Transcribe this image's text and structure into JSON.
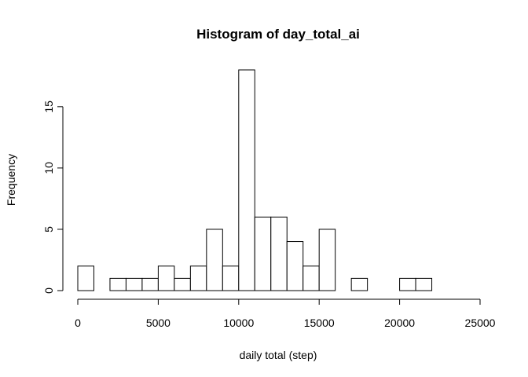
{
  "chart_data": {
    "type": "bar",
    "title": "Histogram of day_total_ai",
    "xlabel": "daily total (step)",
    "ylabel": "Frequency",
    "xlim": [
      0,
      25000
    ],
    "ylim": [
      0,
      18
    ],
    "x_ticks": [
      0,
      5000,
      10000,
      15000,
      20000,
      25000
    ],
    "y_ticks": [
      0,
      5,
      10,
      15
    ],
    "bin_width": 1000,
    "bins": [
      {
        "start": 0,
        "end": 1000,
        "count": 2
      },
      {
        "start": 1000,
        "end": 2000,
        "count": 0
      },
      {
        "start": 2000,
        "end": 3000,
        "count": 1
      },
      {
        "start": 3000,
        "end": 4000,
        "count": 1
      },
      {
        "start": 4000,
        "end": 5000,
        "count": 1
      },
      {
        "start": 5000,
        "end": 6000,
        "count": 2
      },
      {
        "start": 6000,
        "end": 7000,
        "count": 1
      },
      {
        "start": 7000,
        "end": 8000,
        "count": 2
      },
      {
        "start": 8000,
        "end": 9000,
        "count": 5
      },
      {
        "start": 9000,
        "end": 10000,
        "count": 2
      },
      {
        "start": 10000,
        "end": 11000,
        "count": 18
      },
      {
        "start": 11000,
        "end": 12000,
        "count": 6
      },
      {
        "start": 12000,
        "end": 13000,
        "count": 6
      },
      {
        "start": 13000,
        "end": 14000,
        "count": 4
      },
      {
        "start": 14000,
        "end": 15000,
        "count": 2
      },
      {
        "start": 15000,
        "end": 16000,
        "count": 5
      },
      {
        "start": 16000,
        "end": 17000,
        "count": 0
      },
      {
        "start": 17000,
        "end": 18000,
        "count": 1
      },
      {
        "start": 18000,
        "end": 19000,
        "count": 0
      },
      {
        "start": 19000,
        "end": 20000,
        "count": 0
      },
      {
        "start": 20000,
        "end": 21000,
        "count": 1
      },
      {
        "start": 21000,
        "end": 22000,
        "count": 1
      }
    ],
    "grid": false,
    "legend": "none"
  }
}
